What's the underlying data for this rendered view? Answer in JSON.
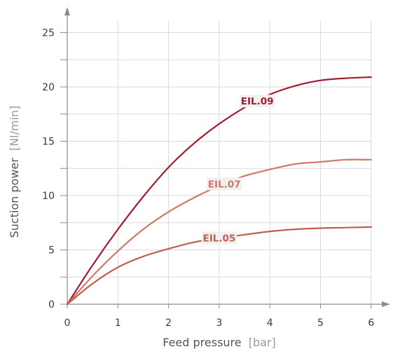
{
  "chart_data": {
    "type": "line",
    "xlabel": "Feed pressure",
    "xlabel_unit": "[bar]",
    "ylabel": "Suction power",
    "ylabel_unit": "[Nl/min]",
    "xlim": [
      0,
      6
    ],
    "ylim": [
      0,
      25
    ],
    "x_ticks": [
      "0",
      "1",
      "2",
      "3",
      "4",
      "5",
      "6"
    ],
    "y_ticks": [
      "0",
      "5",
      "10",
      "15",
      "20",
      "25"
    ],
    "grid": true,
    "x": [
      0,
      0.5,
      1,
      1.5,
      2,
      2.5,
      3,
      3.5,
      4,
      4.5,
      5,
      5.5,
      6
    ],
    "series": [
      {
        "name": "EIL.09",
        "color": "#a51b2f",
        "label_at": 3.75,
        "values": [
          0,
          3.6,
          6.9,
          9.9,
          12.6,
          14.8,
          16.6,
          18.1,
          19.3,
          20.1,
          20.6,
          20.8,
          20.9
        ]
      },
      {
        "name": "EIL.07",
        "color": "#d07766",
        "label_at": 3.1,
        "values": [
          0,
          2.6,
          4.9,
          6.9,
          8.5,
          9.8,
          10.9,
          11.8,
          12.4,
          12.9,
          13.1,
          13.3,
          13.3
        ]
      },
      {
        "name": "EIL.05",
        "color": "#c05f50",
        "label_at": 3.0,
        "values": [
          0,
          1.9,
          3.4,
          4.4,
          5.1,
          5.7,
          6.1,
          6.4,
          6.7,
          6.9,
          7.0,
          7.05,
          7.1
        ]
      }
    ]
  }
}
